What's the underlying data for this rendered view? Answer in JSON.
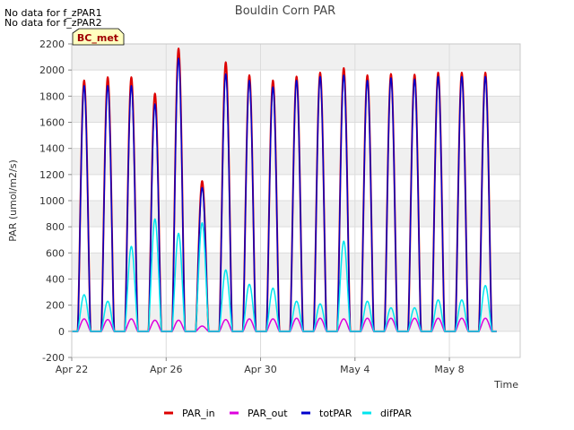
{
  "notes": [
    "No data for f_zPAR1",
    "No data for f_zPAR2"
  ],
  "chart_data": {
    "type": "line",
    "title": "Bouldin Corn PAR",
    "xlabel": "Time",
    "ylabel": "PAR (umol/m2/s)",
    "ylim": [
      -200,
      2200
    ],
    "xlim": [
      "2023-04-22",
      "2023-05-11"
    ],
    "yticks": [
      -200,
      0,
      200,
      400,
      600,
      800,
      1000,
      1200,
      1400,
      1600,
      1800,
      2000,
      2200
    ],
    "xticks": [
      {
        "date": "2023-04-22",
        "label": "Apr 22"
      },
      {
        "date": "2023-04-26",
        "label": "Apr 26"
      },
      {
        "date": "2023-04-30",
        "label": "Apr 30"
      },
      {
        "date": "2023-05-04",
        "label": "May 4"
      },
      {
        "date": "2023-05-08",
        "label": "May 8"
      }
    ],
    "grid": true,
    "badge": "BC_met",
    "legend_position": "bottom",
    "days": [
      "2023-04-22",
      "2023-04-23",
      "2023-04-24",
      "2023-04-25",
      "2023-04-26",
      "2023-04-27",
      "2023-04-28",
      "2023-04-29",
      "2023-04-30",
      "2023-05-01",
      "2023-05-02",
      "2023-05-03",
      "2023-05-04",
      "2023-05-05",
      "2023-05-06",
      "2023-05-07",
      "2023-05-08",
      "2023-05-09"
    ],
    "series": [
      {
        "name": "PAR_in",
        "color": "#dd0000",
        "daily_peak": [
          1920,
          1945,
          1945,
          1820,
          2165,
          1150,
          2060,
          1960,
          1920,
          1950,
          1980,
          2015,
          1960,
          1970,
          1965,
          1980,
          1980,
          1980
        ]
      },
      {
        "name": "PAR_out",
        "color": "#dd00dd",
        "daily_peak": [
          95,
          90,
          95,
          85,
          85,
          40,
          90,
          95,
          95,
          100,
          100,
          95,
          100,
          100,
          100,
          100,
          100,
          100
        ]
      },
      {
        "name": "totPAR",
        "color": "#0000cc",
        "daily_peak": [
          1880,
          1880,
          1880,
          1740,
          2090,
          1100,
          1970,
          1920,
          1870,
          1920,
          1950,
          1960,
          1920,
          1940,
          1930,
          1950,
          1950,
          1950
        ]
      },
      {
        "name": "difPAR",
        "color": "#00e5ee",
        "daily_peak": [
          280,
          230,
          650,
          860,
          750,
          830,
          470,
          360,
          330,
          230,
          210,
          690,
          230,
          180,
          180,
          240,
          240,
          350
        ]
      }
    ]
  }
}
